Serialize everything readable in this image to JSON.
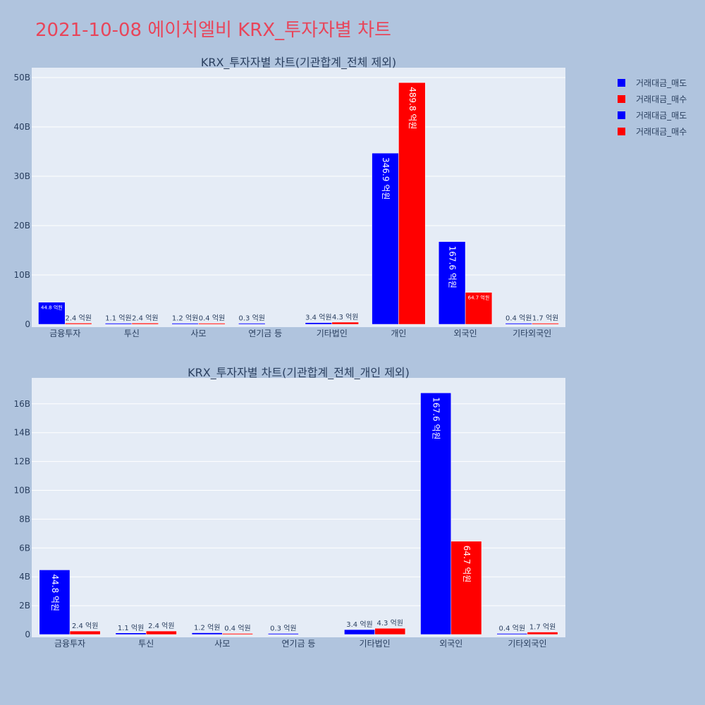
{
  "page_title": "2021-10-08 에이치엘비 KRX_투자자별 차트",
  "colors": {
    "sell": "#0000ff",
    "buy": "#ff0000",
    "plot_bg": "#e5ecf6",
    "page_bg": "#b0c4de",
    "grid": "#ffffff",
    "text": "#2a3f5f"
  },
  "legend": {
    "placement": "right",
    "items": [
      {
        "label": "거래대금_매도",
        "color": "#0000ff"
      },
      {
        "label": "거래대금_매수",
        "color": "#ff0000"
      },
      {
        "label": "거래대금_매도",
        "color": "#0000ff"
      },
      {
        "label": "거래대금_매수",
        "color": "#ff0000"
      }
    ]
  },
  "chart_data": [
    {
      "type": "bar",
      "title": "KRX_투자자별 차트(기관합계_전체 제외)",
      "categories": [
        "금융투자",
        "투신",
        "사모",
        "연기금 등",
        "기타법인",
        "개인",
        "외국인",
        "기타외국인"
      ],
      "series": [
        {
          "name": "거래대금_매도",
          "color": "#0000ff",
          "values": [
            4480000000,
            110000000,
            120000000,
            30000000,
            340000000,
            34690000000,
            16760000000,
            40000000
          ],
          "labels": [
            "44.8 억원",
            "1.1 억원",
            "1.2 억원",
            "0.3 억원",
            "3.4 억원",
            "346.9 억원",
            "167.6 억원",
            "0.4 억원"
          ]
        },
        {
          "name": "거래대금_매수",
          "color": "#ff0000",
          "values": [
            240000000,
            240000000,
            40000000,
            0,
            430000000,
            48980000000,
            6470000000,
            170000000
          ],
          "labels": [
            "2.4 억원",
            "2.4 억원",
            "0.4 억원",
            "",
            "4.3 억원",
            "489.8 억원",
            "64.7 억원",
            "1.7 억원"
          ]
        }
      ],
      "yticks": [
        "0",
        "10B",
        "20B",
        "30B",
        "40B",
        "50B"
      ],
      "ylim": [
        0,
        52000000000
      ],
      "grid": true
    },
    {
      "type": "bar",
      "title": "KRX_투자자별 차트(기관합계_전체_개인 제외)",
      "categories": [
        "금융투자",
        "투신",
        "사모",
        "연기금 등",
        "기타법인",
        "외국인",
        "기타외국인"
      ],
      "series": [
        {
          "name": "거래대금_매도",
          "color": "#0000ff",
          "values": [
            4480000000,
            110000000,
            120000000,
            30000000,
            340000000,
            16760000000,
            40000000
          ],
          "labels": [
            "44.8 억원",
            "1.1 억원",
            "1.2 억원",
            "0.3 억원",
            "3.4 억원",
            "167.6 억원",
            "0.4 억원"
          ]
        },
        {
          "name": "거래대금_매수",
          "color": "#ff0000",
          "values": [
            240000000,
            240000000,
            40000000,
            0,
            430000000,
            6470000000,
            170000000
          ],
          "labels": [
            "2.4 억원",
            "2.4 억원",
            "0.4 억원",
            "",
            "4.3 억원",
            "64.7 억원",
            "1.7 억원"
          ]
        }
      ],
      "yticks": [
        "0",
        "2B",
        "4B",
        "6B",
        "8B",
        "10B",
        "12B",
        "14B",
        "16B"
      ],
      "ylim": [
        0,
        17800000000
      ],
      "grid": true
    }
  ]
}
